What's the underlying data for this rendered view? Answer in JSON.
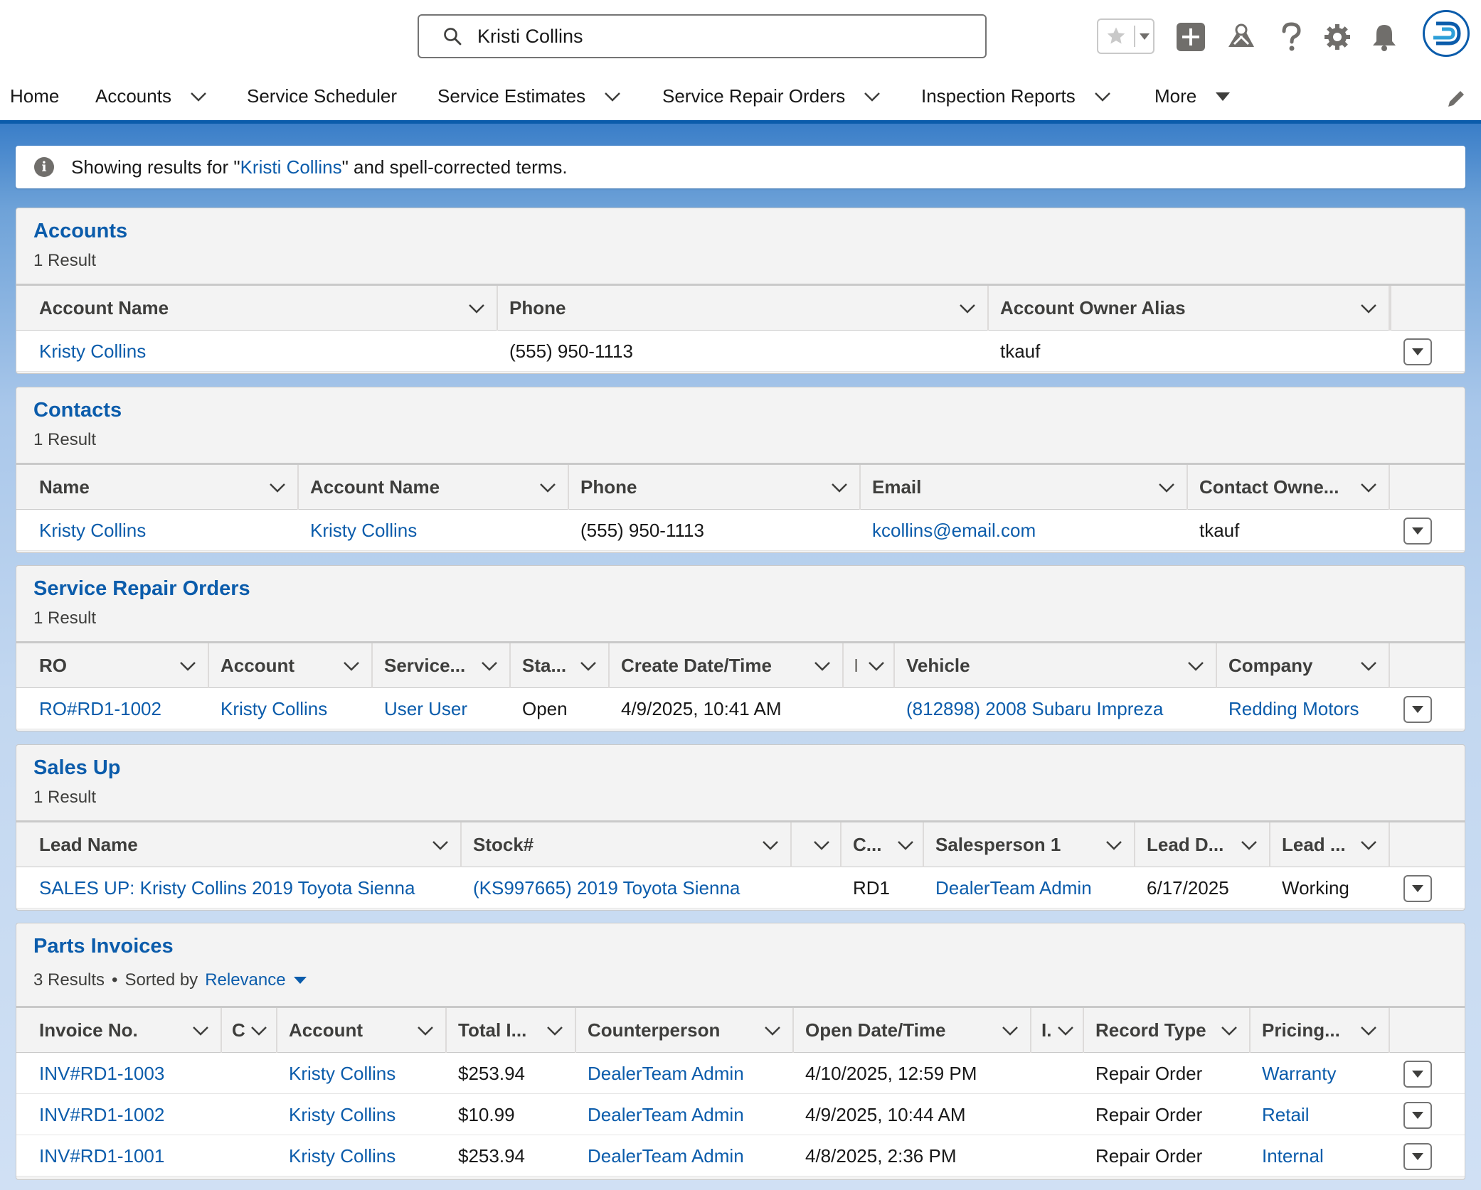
{
  "header": {
    "search_value": "Kristi Collins",
    "icons": [
      "search-icon",
      "star-icon",
      "chevron-down-icon",
      "add-icon",
      "trailhead-icon",
      "help-icon",
      "setup-gear-icon",
      "notification-bell-icon",
      "avatar-logo"
    ]
  },
  "nav": {
    "items": [
      {
        "label": "Home",
        "dropdown": false
      },
      {
        "label": "Accounts",
        "dropdown": true
      },
      {
        "label": "Service Scheduler",
        "dropdown": false
      },
      {
        "label": "Service Estimates",
        "dropdown": true
      },
      {
        "label": "Service Repair Orders",
        "dropdown": true
      },
      {
        "label": "Inspection Reports",
        "dropdown": true
      },
      {
        "label": "More",
        "dropdown": true
      }
    ]
  },
  "banner": {
    "prefix": "Showing results for \"",
    "term": "Kristi Collins",
    "suffix": "\" and spell-corrected terms."
  },
  "accounts": {
    "title": "Accounts",
    "result_count": "1 Result",
    "columns": [
      "Account Name",
      "Phone",
      "Account Owner Alias"
    ],
    "rows": [
      [
        "Kristy Collins",
        "(555) 950-1113",
        "tkauf"
      ]
    ]
  },
  "contacts": {
    "title": "Contacts",
    "result_count": "1 Result",
    "columns": [
      "Name",
      "Account Name",
      "Phone",
      "Email",
      "Contact Owne..."
    ],
    "rows": [
      [
        "Kristy Collins",
        "Kristy Collins",
        "(555) 950-1113",
        "kcollins@email.com",
        "tkauf"
      ]
    ]
  },
  "repair_orders": {
    "title": "Service Repair Orders",
    "result_count": "1 Result",
    "columns": [
      "RO",
      "Account",
      "Service...",
      "Sta...",
      "Create Date/Time",
      "I",
      "Vehicle",
      "Company"
    ],
    "rows": [
      [
        "RO#RD1-1002",
        "Kristy Collins",
        "User User",
        "Open",
        "4/9/2025, 10:41 AM",
        "",
        "(812898) 2008 Subaru Impreza",
        "Redding Motors"
      ]
    ]
  },
  "sales_up": {
    "title": "Sales Up",
    "result_count": "1 Result",
    "columns": [
      "Lead Name",
      "Stock#",
      "",
      "C...",
      "Salesperson 1",
      "Lead D...",
      "Lead ..."
    ],
    "rows": [
      [
        "SALES UP: Kristy Collins 2019 Toyota Sienna",
        "(KS997665) 2019 Toyota Sienna",
        "",
        "RD1",
        "DealerTeam Admin",
        "6/17/2025",
        "Working"
      ]
    ]
  },
  "parts_invoices": {
    "title": "Parts Invoices",
    "result_count": "3 Results",
    "sorted_by_label": "Sorted by",
    "sorted_by_value": "Relevance",
    "columns": [
      "Invoice No.",
      "C",
      "Account",
      "Total I...",
      "Counterperson",
      "Open Date/Time",
      "I.",
      "Record Type",
      "Pricing..."
    ],
    "rows": [
      [
        "INV#RD1-1003",
        "",
        "Kristy Collins",
        "$253.94",
        "DealerTeam Admin",
        "4/10/2025, 12:59 PM",
        "",
        "Repair Order",
        "Warranty"
      ],
      [
        "INV#RD1-1002",
        "",
        "Kristy Collins",
        "$10.99",
        "DealerTeam Admin",
        "4/9/2025, 10:44 AM",
        "",
        "Repair Order",
        "Retail"
      ],
      [
        "INV#RD1-1001",
        "",
        "Kristy Collins",
        "$253.94",
        "DealerTeam Admin",
        "4/8/2025, 2:36 PM",
        "",
        "Repair Order",
        "Internal"
      ]
    ]
  },
  "colors": {
    "link": "#0b5cab",
    "brand_bar": "#0b5cab"
  }
}
